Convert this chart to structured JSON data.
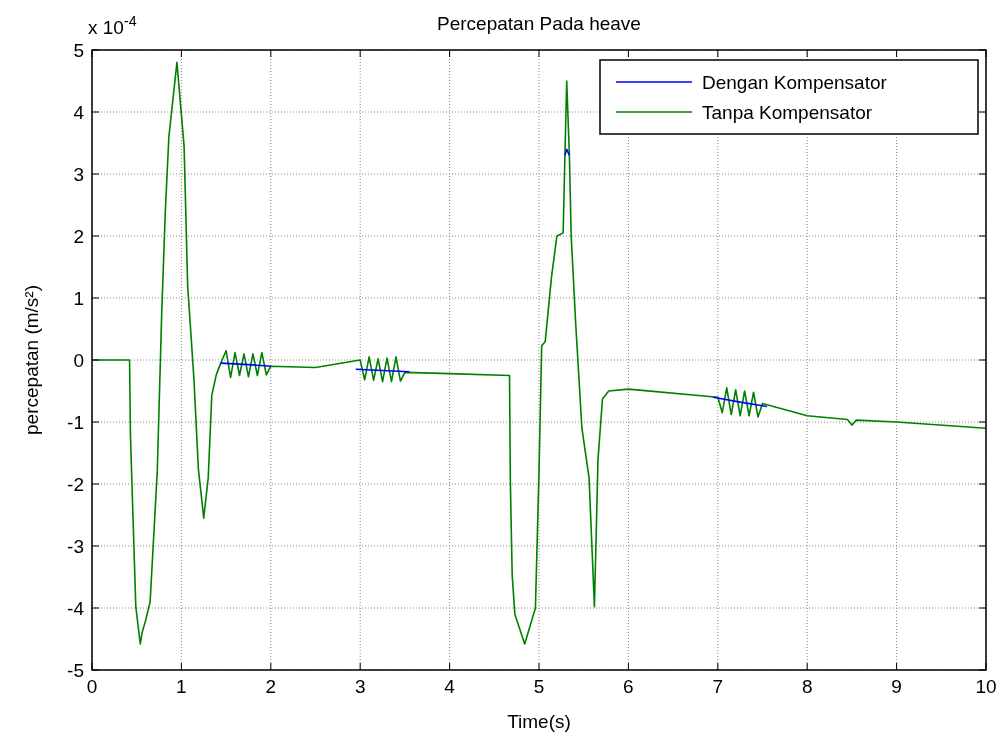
{
  "chart_data": {
    "type": "line",
    "title": "Percepatan Pada heave",
    "xlabel": "Time(s)",
    "ylabel": "percepatan (m/s²)",
    "annotations": [
      "x 10$^{-4}$"
    ],
    "xlim": [
      0,
      10
    ],
    "ylim": [
      -5,
      5
    ],
    "xticks": [
      0,
      1,
      2,
      3,
      4,
      5,
      6,
      7,
      8,
      9,
      10
    ],
    "yticks": [
      -5,
      -4,
      -3,
      -2,
      -1,
      0,
      1,
      2,
      3,
      4,
      5
    ],
    "grid": true,
    "legend": "top right",
    "line_style": "solid",
    "marker": "none",
    "series": [
      {
        "name": "Dengan Kompensator",
        "color": "#0000ff",
        "x": [
          1.44,
          1.7,
          2,
          null,
          2.95,
          3.25,
          3.55,
          null,
          5.29,
          5.31,
          5.34,
          null,
          6.95,
          7.25,
          7.55
        ],
        "values": [
          -0.05,
          -0.07,
          -0.1,
          null,
          -0.15,
          -0.17,
          -0.19,
          null,
          3.3,
          3.4,
          3.3,
          null,
          -0.6,
          -0.68,
          -0.75
        ]
      },
      {
        "name": "Tanpa Kompensator",
        "color": "#008000",
        "x": [
          0,
          0.42,
          0.43,
          0.46,
          0.49,
          0.54,
          0.56,
          0.6,
          0.65,
          0.73,
          0.78,
          0.82,
          0.86,
          0.95,
          1.03,
          1.07,
          1.14,
          1.19,
          1.25,
          1.3,
          1.34,
          1.39,
          1.44,
          1.5,
          1.55,
          1.6,
          1.65,
          1.7,
          1.75,
          1.8,
          1.85,
          1.9,
          1.95,
          2,
          2.5,
          3,
          3.05,
          3.1,
          3.15,
          3.2,
          3.25,
          3.3,
          3.35,
          3.4,
          3.45,
          3.5,
          4,
          4.67,
          4.68,
          4.7,
          4.73,
          4.84,
          4.96,
          5,
          5.03,
          5.07,
          5.14,
          5.2,
          5.27,
          5.29,
          5.31,
          5.34,
          5.36,
          5.41,
          5.48,
          5.56,
          5.62,
          5.66,
          5.71,
          5.78,
          6,
          7,
          7.05,
          7.1,
          7.15,
          7.2,
          7.25,
          7.3,
          7.35,
          7.4,
          7.45,
          7.5,
          8,
          8.45,
          8.5,
          8.55,
          9,
          10
        ],
        "values": [
          0,
          0,
          -1.2,
          -2.6,
          -3.98,
          -4.58,
          -4.4,
          -4.2,
          -3.9,
          -1.8,
          0.76,
          2.4,
          3.6,
          4.8,
          3.45,
          1.2,
          -0.3,
          -1.76,
          -2.55,
          -1.9,
          -0.57,
          -0.24,
          -0.05,
          0.15,
          -0.28,
          0.12,
          -0.25,
          0.1,
          -0.27,
          0.1,
          -0.25,
          0.12,
          -0.24,
          -0.1,
          -0.12,
          0,
          -0.32,
          0.05,
          -0.33,
          0.02,
          -0.35,
          0.03,
          -0.35,
          0.05,
          -0.34,
          -0.2,
          -0.22,
          -0.25,
          -2,
          -3.47,
          -4.1,
          -4.58,
          -4,
          -1.8,
          0.23,
          0.3,
          1.34,
          2,
          2.05,
          3.3,
          4.5,
          3.3,
          2,
          0.6,
          -1.1,
          -1.9,
          -3.98,
          -1.6,
          -0.63,
          -0.5,
          -0.47,
          -0.6,
          -0.85,
          -0.45,
          -0.88,
          -0.48,
          -0.9,
          -0.5,
          -0.9,
          -0.52,
          -0.92,
          -0.7,
          -0.9,
          -0.96,
          -1.05,
          -0.97,
          -1,
          -1.1
        ]
      }
    ]
  }
}
